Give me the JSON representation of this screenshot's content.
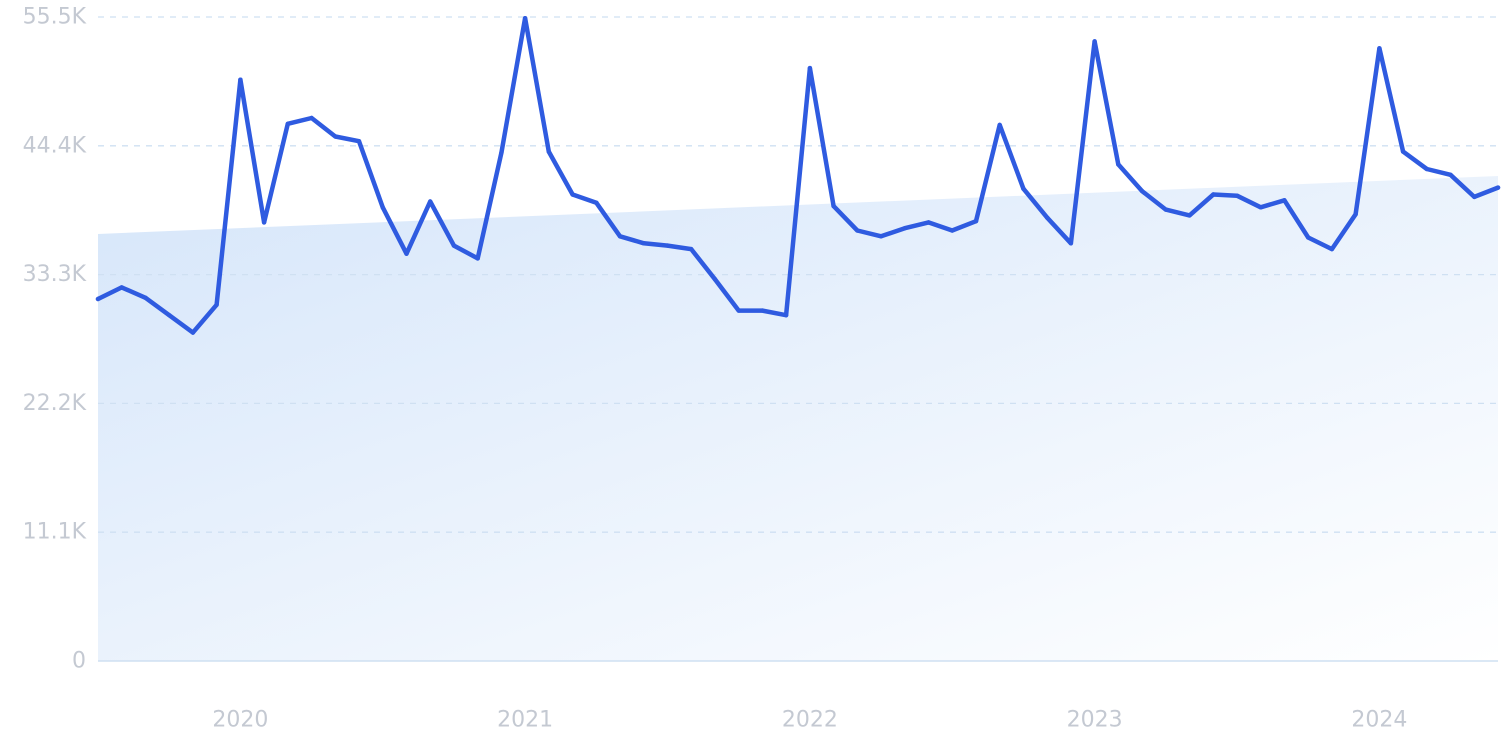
{
  "chart_data": {
    "type": "line",
    "title": "",
    "xlabel": "",
    "ylabel": "",
    "grid": true,
    "legend": "none",
    "colors": {
      "line": "#2f5be0",
      "grid": "#cfe0f2",
      "trend_fill_start": "#d6e6fa",
      "trend_fill_end": "#ffffff",
      "tick_text": "#c4c9d2"
    },
    "ylim": [
      0,
      55500
    ],
    "y_ticks": [
      {
        "value": 0,
        "label": "0"
      },
      {
        "value": 11100,
        "label": "11.1K"
      },
      {
        "value": 22200,
        "label": "22.2K"
      },
      {
        "value": 33300,
        "label": "33.3K"
      },
      {
        "value": 44400,
        "label": "44.4K"
      },
      {
        "value": 55500,
        "label": "55.5K"
      }
    ],
    "x_ticks": [
      {
        "date": "2020-01",
        "label": "2020"
      },
      {
        "date": "2021-01",
        "label": "2021"
      },
      {
        "date": "2022-01",
        "label": "2022"
      },
      {
        "date": "2023-01",
        "label": "2023"
      },
      {
        "date": "2024-01",
        "label": "2024"
      }
    ],
    "x_range": [
      "2019-07",
      "2024-06"
    ],
    "trend": {
      "start": 36800,
      "end": 41800
    },
    "series": [
      {
        "x": [
          "2019-07",
          "2019-08",
          "2019-09",
          "2019-10",
          "2019-11",
          "2019-12",
          "2020-01",
          "2020-02",
          "2020-03",
          "2020-04",
          "2020-05",
          "2020-06",
          "2020-07",
          "2020-08",
          "2020-09",
          "2020-10",
          "2020-11",
          "2020-12",
          "2021-01",
          "2021-02",
          "2021-03",
          "2021-04",
          "2021-05",
          "2021-06",
          "2021-07",
          "2021-08",
          "2021-09",
          "2021-10",
          "2021-11",
          "2021-12",
          "2022-01",
          "2022-02",
          "2022-03",
          "2022-04",
          "2022-05",
          "2022-06",
          "2022-07",
          "2022-08",
          "2022-09",
          "2022-10",
          "2022-11",
          "2022-12",
          "2023-01",
          "2023-02",
          "2023-03",
          "2023-04",
          "2023-05",
          "2023-06",
          "2023-07",
          "2023-08",
          "2023-09",
          "2023-10",
          "2023-11",
          "2023-12",
          "2024-01",
          "2024-02",
          "2024-03",
          "2024-04",
          "2024-05",
          "2024-06"
        ],
        "values": [
          31200,
          32200,
          31300,
          29800,
          28300,
          30700,
          50100,
          37800,
          46300,
          46800,
          45200,
          44800,
          39100,
          35100,
          39600,
          35800,
          34700,
          43800,
          55400,
          43900,
          40200,
          39500,
          36600,
          36000,
          35800,
          35500,
          32900,
          30200,
          30200,
          29800,
          51100,
          39200,
          37100,
          36600,
          37300,
          37800,
          37100,
          37900,
          46200,
          40700,
          38200,
          36000,
          53400,
          42800,
          40500,
          38900,
          38400,
          40200,
          40100,
          39100,
          39700,
          36500,
          35500,
          38500,
          52800,
          43900,
          42400,
          41900,
          40000,
          40800
        ]
      }
    ]
  }
}
